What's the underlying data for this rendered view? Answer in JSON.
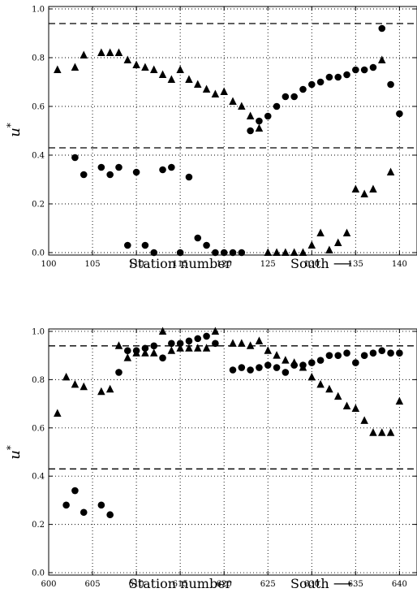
{
  "chart_data": [
    {
      "type": "scatter",
      "xlabel": "Station number",
      "direction_label": "South ⟶",
      "ylabel_base": "u",
      "ylabel_sup": "*",
      "xlim": [
        100,
        142
      ],
      "ylim": [
        -0.01,
        1.01
      ],
      "xticks": [
        100,
        105,
        110,
        115,
        120,
        125,
        130,
        135,
        140
      ],
      "yticks": [
        0.0,
        0.2,
        0.4,
        0.6,
        0.8,
        1.0
      ],
      "reference_lines": [
        0.94,
        0.43
      ],
      "grid": true,
      "series": [
        {
          "marker": "triangle",
          "points": [
            [
              101,
              0.75
            ],
            [
              103,
              0.76
            ],
            [
              104,
              0.81
            ],
            [
              106,
              0.82
            ],
            [
              107,
              0.82
            ],
            [
              108,
              0.82
            ],
            [
              109,
              0.79
            ],
            [
              110,
              0.77
            ],
            [
              111,
              0.76
            ],
            [
              112,
              0.75
            ],
            [
              113,
              0.73
            ],
            [
              114,
              0.71
            ],
            [
              115,
              0.75
            ],
            [
              116,
              0.71
            ],
            [
              117,
              0.69
            ],
            [
              118,
              0.67
            ],
            [
              119,
              0.65
            ],
            [
              120,
              0.66
            ],
            [
              121,
              0.62
            ],
            [
              122,
              0.6
            ],
            [
              123,
              0.56
            ],
            [
              124,
              0.51
            ],
            [
              131,
              0.08
            ],
            [
              130,
              0.03
            ],
            [
              132,
              0.01
            ],
            [
              133,
              0.04
            ],
            [
              134,
              0.08
            ],
            [
              135,
              0.26
            ],
            [
              136,
              0.24
            ],
            [
              137,
              0.26
            ],
            [
              138,
              0.79
            ],
            [
              139,
              0.33
            ],
            [
              125,
              0.0
            ],
            [
              126,
              0.0
            ],
            [
              127,
              0.0
            ],
            [
              128,
              0.0
            ],
            [
              129,
              0.0
            ]
          ]
        },
        {
          "marker": "circle",
          "points": [
            [
              103,
              0.39
            ],
            [
              104,
              0.32
            ],
            [
              106,
              0.35
            ],
            [
              107,
              0.32
            ],
            [
              108,
              0.35
            ],
            [
              110,
              0.33
            ],
            [
              113,
              0.34
            ],
            [
              114,
              0.35
            ],
            [
              116,
              0.31
            ],
            [
              109,
              0.03
            ],
            [
              111,
              0.03
            ],
            [
              112,
              0.0
            ],
            [
              115,
              0.0
            ],
            [
              117,
              0.06
            ],
            [
              118,
              0.03
            ],
            [
              119,
              0.0
            ],
            [
              120,
              0.0
            ],
            [
              121,
              0.0
            ],
            [
              122,
              0.0
            ],
            [
              123,
              0.5
            ],
            [
              124,
              0.54
            ],
            [
              125,
              0.56
            ],
            [
              126,
              0.6
            ],
            [
              127,
              0.64
            ],
            [
              128,
              0.64
            ],
            [
              129,
              0.67
            ],
            [
              130,
              0.69
            ],
            [
              131,
              0.7
            ],
            [
              132,
              0.72
            ],
            [
              133,
              0.72
            ],
            [
              134,
              0.73
            ],
            [
              135,
              0.75
            ],
            [
              136,
              0.75
            ],
            [
              137,
              0.76
            ],
            [
              138,
              0.92
            ],
            [
              139,
              0.69
            ],
            [
              140,
              0.57
            ]
          ]
        }
      ]
    },
    {
      "type": "scatter",
      "xlabel": "Station number",
      "direction_label": "South ⟶",
      "ylabel_base": "u",
      "ylabel_sup": "*",
      "xlim": [
        600,
        642
      ],
      "ylim": [
        -0.01,
        1.01
      ],
      "xticks": [
        600,
        605,
        610,
        615,
        620,
        625,
        630,
        635,
        640
      ],
      "yticks": [
        0.0,
        0.2,
        0.4,
        0.6,
        0.8,
        1.0
      ],
      "reference_lines": [
        0.94,
        0.43
      ],
      "grid": true,
      "series": [
        {
          "marker": "triangle",
          "points": [
            [
              601,
              0.66
            ],
            [
              602,
              0.81
            ],
            [
              603,
              0.78
            ],
            [
              604,
              0.77
            ],
            [
              606,
              0.75
            ],
            [
              607,
              0.76
            ],
            [
              608,
              0.94
            ],
            [
              609,
              0.89
            ],
            [
              610,
              0.91
            ],
            [
              611,
              0.91
            ],
            [
              612,
              0.91
            ],
            [
              613,
              1.0
            ],
            [
              614,
              0.92
            ],
            [
              615,
              0.93
            ],
            [
              616,
              0.93
            ],
            [
              617,
              0.93
            ],
            [
              618,
              0.93
            ],
            [
              619,
              1.0
            ],
            [
              621,
              0.95
            ],
            [
              622,
              0.95
            ],
            [
              623,
              0.94
            ],
            [
              624,
              0.96
            ],
            [
              625,
              0.92
            ],
            [
              626,
              0.9
            ],
            [
              627,
              0.88
            ],
            [
              628,
              0.87
            ],
            [
              629,
              0.85
            ],
            [
              630,
              0.81
            ],
            [
              631,
              0.78
            ],
            [
              632,
              0.76
            ],
            [
              633,
              0.73
            ],
            [
              634,
              0.69
            ],
            [
              635,
              0.68
            ],
            [
              636,
              0.63
            ],
            [
              637,
              0.58
            ],
            [
              638,
              0.58
            ],
            [
              639,
              0.58
            ],
            [
              640,
              0.71
            ]
          ]
        },
        {
          "marker": "circle",
          "points": [
            [
              602,
              0.28
            ],
            [
              603,
              0.34
            ],
            [
              604,
              0.25
            ],
            [
              606,
              0.28
            ],
            [
              607,
              0.24
            ],
            [
              608,
              0.83
            ],
            [
              609,
              0.92
            ],
            [
              610,
              0.92
            ],
            [
              611,
              0.93
            ],
            [
              612,
              0.94
            ],
            [
              613,
              0.89
            ],
            [
              614,
              0.95
            ],
            [
              615,
              0.95
            ],
            [
              616,
              0.96
            ],
            [
              617,
              0.97
            ],
            [
              618,
              0.98
            ],
            [
              619,
              0.95
            ],
            [
              621,
              0.84
            ],
            [
              622,
              0.85
            ],
            [
              623,
              0.84
            ],
            [
              624,
              0.85
            ],
            [
              625,
              0.86
            ],
            [
              626,
              0.85
            ],
            [
              627,
              0.83
            ],
            [
              628,
              0.86
            ],
            [
              629,
              0.86
            ],
            [
              630,
              0.87
            ],
            [
              631,
              0.88
            ],
            [
              632,
              0.9
            ],
            [
              633,
              0.9
            ],
            [
              634,
              0.91
            ],
            [
              635,
              0.87
            ],
            [
              636,
              0.9
            ],
            [
              637,
              0.91
            ],
            [
              638,
              0.92
            ],
            [
              639,
              0.91
            ],
            [
              640,
              0.91
            ]
          ]
        }
      ]
    }
  ]
}
